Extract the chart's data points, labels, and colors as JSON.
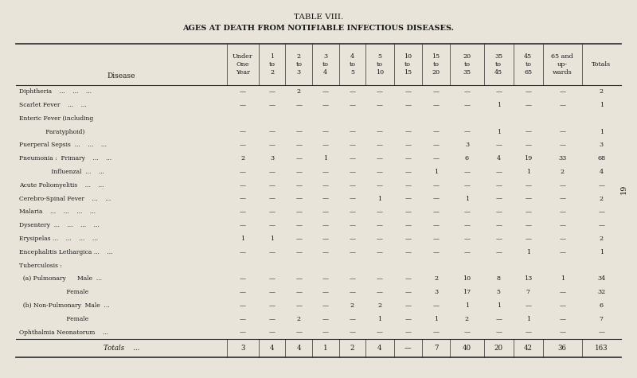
{
  "title": "TABLE VIII.",
  "subtitle": "AGES AT DEATH FROM NOTIFIABLE INFECTIOUS DISEASES.",
  "bg_color": "#e8e4da",
  "text_color": "#1a1a1a",
  "page_number": "19",
  "col_headers": [
    "Disease",
    "Under\nOne\nYear",
    "1\nto\n2",
    "2\nto\n3",
    "3\nto\n4",
    "4\nto\n5",
    "5\nto\n10",
    "10\nto\n15",
    "15\nto\n20",
    "20\nto\n35",
    "35\nto\n45",
    "45\nto\n65",
    "65 and\nup-\nwards",
    "Totals"
  ],
  "rows": [
    [
      "Diphtheria    ...    ...    ...",
      "—",
      "—",
      "2",
      "—",
      "—",
      "—",
      "—",
      "—",
      "—",
      "—",
      "—",
      "—",
      "2"
    ],
    [
      "Scarlet Fever    ...    ...",
      "—",
      "—",
      "—",
      "—",
      "—",
      "—",
      "—",
      "—",
      "—",
      "1",
      "—",
      "—",
      "1"
    ],
    [
      "Enteric Fever (including",
      "",
      "",
      "",
      "",
      "",
      "",
      "",
      "",
      "",
      "",
      "",
      "",
      ""
    ],
    [
      "              Paratyphoid)",
      "—",
      "—",
      "—",
      "—",
      "—",
      "—",
      "—",
      "—",
      "—",
      "1",
      "—",
      "—",
      "1"
    ],
    [
      "Puerperal Sepsis  ...    ...    ...",
      "—",
      "—",
      "—",
      "—",
      "—",
      "—",
      "—",
      "—",
      "3",
      "—",
      "—",
      "—",
      "3"
    ],
    [
      "Pneumonia :  Primary    ...    ...",
      "2",
      "3",
      "—",
      "1",
      "—",
      "—",
      "—",
      "—",
      "6",
      "4",
      "19",
      "33",
      "68"
    ],
    [
      "                 Influenzal  ...    ...",
      "—",
      "—",
      "—",
      "—",
      "—",
      "—",
      "—",
      "1",
      "—",
      "—",
      "1",
      "2",
      "4"
    ],
    [
      "Acute Poliomyelitis    ...    ...",
      "—",
      "—",
      "—",
      "—",
      "—",
      "—",
      "—",
      "—",
      "—",
      "—",
      "—",
      "—",
      "—"
    ],
    [
      "Cerebro-Spinal Fever    ...    ...",
      "—",
      "—",
      "—",
      "—",
      "—",
      "1",
      "—",
      "—",
      "1",
      "—",
      "—",
      "—",
      "2"
    ],
    [
      "Malaria    ...    ...    ...    ...",
      "—",
      "—",
      "—",
      "—",
      "—",
      "—",
      "—",
      "—",
      "—",
      "—",
      "—",
      "—",
      "—"
    ],
    [
      "Dysentery  ...    ...    ...    ...",
      "—",
      "—",
      "—",
      "—",
      "—",
      "—",
      "—",
      "—",
      "—",
      "—",
      "—",
      "—",
      "—"
    ],
    [
      "Erysipelas ...    ...    ...    ...",
      "1",
      "1",
      "—",
      "—",
      "—",
      "—",
      "—",
      "—",
      "—",
      "—",
      "—",
      "—",
      "2"
    ],
    [
      "Encephalitis Lethargica ...    ...",
      "—",
      "—",
      "—",
      "—",
      "—",
      "—",
      "—",
      "—",
      "—",
      "—",
      "1",
      "—",
      "1"
    ],
    [
      "Tuberculosis :",
      "",
      "",
      "",
      "",
      "",
      "",
      "",
      "",
      "",
      "",
      "",
      "",
      ""
    ],
    [
      "  (a) Pulmonary      Male  ...",
      "—",
      "—",
      "—",
      "—",
      "—",
      "—",
      "—",
      "2",
      "10",
      "8",
      "13",
      "1",
      "34"
    ],
    [
      "                         Female",
      "—",
      "—",
      "—",
      "—",
      "—",
      "—",
      "—",
      "3",
      "17",
      "5",
      "7",
      "—",
      "32"
    ],
    [
      "  (b) Non-Pulmonary  Male  ...",
      "—",
      "—",
      "—",
      "—",
      "2",
      "2",
      "—",
      "—",
      "1",
      "1",
      "—",
      "—",
      "6"
    ],
    [
      "                         Female",
      "—",
      "—",
      "2",
      "—",
      "—",
      "1",
      "—",
      "1",
      "2",
      "—",
      "1",
      "—",
      "7"
    ],
    [
      "Ophthalmia Neonatorum    ...",
      "—",
      "—",
      "—",
      "—",
      "—",
      "—",
      "—",
      "—",
      "—",
      "—",
      "—",
      "—",
      "—"
    ]
  ],
  "totals_row": [
    "Totals    ...",
    "3",
    "4",
    "4",
    "1",
    "2",
    "4",
    "—",
    "7",
    "40",
    "20",
    "42",
    "36",
    "163"
  ]
}
